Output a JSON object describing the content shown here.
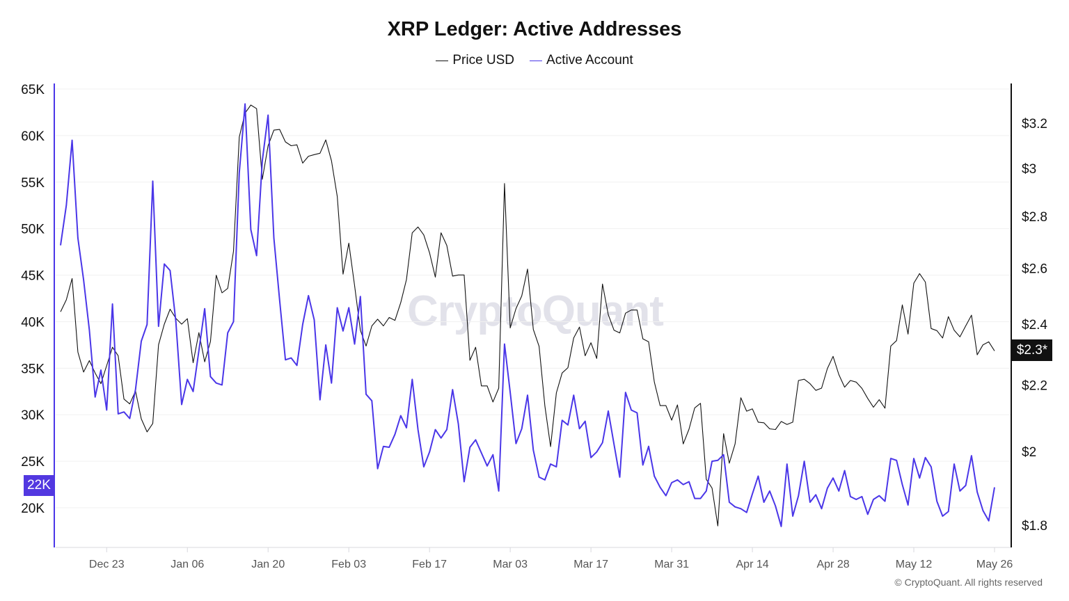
{
  "chart_data": {
    "type": "line",
    "title": "XRP Ledger: Active Addresses",
    "legend_position": "top-center",
    "grid": true,
    "colors": {
      "price": "#111111",
      "active": "#4a36e8",
      "active_badge": "#5238e0",
      "price_badge": "#111111"
    },
    "x": [
      "Dec 15",
      "Dec 16",
      "Dec 17",
      "Dec 18",
      "Dec 19",
      "Dec 20",
      "Dec 21",
      "Dec 22",
      "Dec 23",
      "Dec 24",
      "Dec 25",
      "Dec 26",
      "Dec 27",
      "Dec 28",
      "Dec 29",
      "Dec 30",
      "Dec 31",
      "Jan 01",
      "Jan 02",
      "Jan 03",
      "Jan 04",
      "Jan 05",
      "Jan 06",
      "Jan 07",
      "Jan 08",
      "Jan 09",
      "Jan 10",
      "Jan 11",
      "Jan 12",
      "Jan 13",
      "Jan 14",
      "Jan 15",
      "Jan 16",
      "Jan 17",
      "Jan 18",
      "Jan 19",
      "Jan 20",
      "Jan 21",
      "Jan 22",
      "Jan 23",
      "Jan 24",
      "Jan 25",
      "Jan 26",
      "Jan 27",
      "Jan 28",
      "Jan 29",
      "Jan 30",
      "Jan 31",
      "Feb 01",
      "Feb 02",
      "Feb 03",
      "Feb 04",
      "Feb 05",
      "Feb 06",
      "Feb 07",
      "Feb 08",
      "Feb 09",
      "Feb 10",
      "Feb 11",
      "Feb 12",
      "Feb 13",
      "Feb 14",
      "Feb 15",
      "Feb 16",
      "Feb 17",
      "Feb 18",
      "Feb 19",
      "Feb 20",
      "Feb 21",
      "Feb 22",
      "Feb 23",
      "Feb 24",
      "Feb 25",
      "Feb 26",
      "Feb 27",
      "Feb 28",
      "Mar 01",
      "Mar 02",
      "Mar 03",
      "Mar 04",
      "Mar 05",
      "Mar 06",
      "Mar 07",
      "Mar 08",
      "Mar 09",
      "Mar 10",
      "Mar 11",
      "Mar 12",
      "Mar 13",
      "Mar 14",
      "Mar 15",
      "Mar 16",
      "Mar 17",
      "Mar 18",
      "Mar 19",
      "Mar 20",
      "Mar 21",
      "Mar 22",
      "Mar 23",
      "Mar 24",
      "Mar 25",
      "Mar 26",
      "Mar 27",
      "Mar 28",
      "Mar 29",
      "Mar 30",
      "Mar 31",
      "Apr 01",
      "Apr 02",
      "Apr 03",
      "Apr 04",
      "Apr 05",
      "Apr 06",
      "Apr 07",
      "Apr 08",
      "Apr 09",
      "Apr 10",
      "Apr 11",
      "Apr 12",
      "Apr 13",
      "Apr 14",
      "Apr 15",
      "Apr 16",
      "Apr 17",
      "Apr 18",
      "Apr 19",
      "Apr 20",
      "Apr 21",
      "Apr 22",
      "Apr 23",
      "Apr 24",
      "Apr 25",
      "Apr 26",
      "Apr 27",
      "Apr 28",
      "Apr 29",
      "Apr 30",
      "May 01",
      "May 02",
      "May 03",
      "May 04",
      "May 05",
      "May 06",
      "May 07",
      "May 08",
      "May 09",
      "May 10",
      "May 11",
      "May 12",
      "May 13",
      "May 14",
      "May 15",
      "May 16",
      "May 17",
      "May 18",
      "May 19",
      "May 20",
      "May 21",
      "May 22",
      "May 23",
      "May 24",
      "May 25",
      "May 26"
    ],
    "x_ticks": [
      "Dec 23",
      "Jan 06",
      "Jan 20",
      "Feb 03",
      "Feb 17",
      "Mar 03",
      "Mar 17",
      "Mar 31",
      "Apr 14",
      "Apr 28",
      "May 12",
      "May 26"
    ],
    "series": [
      {
        "name": "Price USD",
        "axis": "right",
        "unit": "USD",
        "values": [
          2.443,
          2.485,
          2.562,
          2.306,
          2.241,
          2.278,
          2.238,
          2.204,
          2.262,
          2.322,
          2.294,
          2.156,
          2.141,
          2.181,
          2.096,
          2.057,
          2.082,
          2.33,
          2.4,
          2.452,
          2.42,
          2.4,
          2.419,
          2.271,
          2.371,
          2.274,
          2.341,
          2.574,
          2.51,
          2.526,
          2.664,
          3.137,
          3.246,
          3.284,
          3.267,
          2.953,
          3.098,
          3.168,
          3.171,
          3.115,
          3.098,
          3.102,
          3.022,
          3.052,
          3.059,
          3.065,
          3.124,
          3.032,
          2.881,
          2.578,
          2.695,
          2.536,
          2.379,
          2.326,
          2.394,
          2.417,
          2.394,
          2.423,
          2.413,
          2.475,
          2.558,
          2.735,
          2.758,
          2.727,
          2.658,
          2.567,
          2.735,
          2.686,
          2.571,
          2.575,
          2.575,
          2.279,
          2.322,
          2.197,
          2.197,
          2.147,
          2.19,
          2.935,
          2.387,
          2.454,
          2.499,
          2.597,
          2.382,
          2.325,
          2.135,
          2.014,
          2.175,
          2.238,
          2.255,
          2.353,
          2.39,
          2.294,
          2.337,
          2.285,
          2.542,
          2.433,
          2.379,
          2.37,
          2.438,
          2.449,
          2.449,
          2.35,
          2.34,
          2.209,
          2.136,
          2.136,
          2.092,
          2.138,
          2.022,
          2.065,
          2.129,
          2.143,
          1.922,
          1.898,
          1.798,
          2.052,
          1.967,
          2.022,
          2.16,
          2.119,
          2.126,
          2.086,
          2.084,
          2.066,
          2.064,
          2.088,
          2.079,
          2.086,
          2.214,
          2.218,
          2.204,
          2.183,
          2.19,
          2.252,
          2.292,
          2.233,
          2.193,
          2.214,
          2.209,
          2.189,
          2.158,
          2.131,
          2.154,
          2.128,
          2.326,
          2.344,
          2.467,
          2.366,
          2.545,
          2.58,
          2.549,
          2.385,
          2.378,
          2.353,
          2.426,
          2.379,
          2.357,
          2.394,
          2.431,
          2.297,
          2.33,
          2.34,
          2.31
        ]
      },
      {
        "name": "Active Account",
        "axis": "left",
        "unit": "thousands",
        "values": [
          48.2,
          52.5,
          59.5,
          49.0,
          44.5,
          39.1,
          31.9,
          34.8,
          30.5,
          41.9,
          30.1,
          30.3,
          29.6,
          32.7,
          37.9,
          39.7,
          55.1,
          39.5,
          46.2,
          45.5,
          40.0,
          31.1,
          33.8,
          32.5,
          36.9,
          41.4,
          34.1,
          33.4,
          33.2,
          38.8,
          40.0,
          56.0,
          63.4,
          49.9,
          47.1,
          57.3,
          62.2,
          49.0,
          42.3,
          35.9,
          36.1,
          35.3,
          39.7,
          42.8,
          40.2,
          31.6,
          37.5,
          33.4,
          41.5,
          39.0,
          41.5,
          37.6,
          42.7,
          32.2,
          31.5,
          24.2,
          26.6,
          26.5,
          27.9,
          29.9,
          28.6,
          33.8,
          28.4,
          24.4,
          26.0,
          28.4,
          27.5,
          28.4,
          32.7,
          29.0,
          22.8,
          26.5,
          27.3,
          25.9,
          24.5,
          25.7,
          21.8,
          37.6,
          32.4,
          26.9,
          28.5,
          32.1,
          26.2,
          23.3,
          23.0,
          24.7,
          24.4,
          29.4,
          28.9,
          32.1,
          28.5,
          29.3,
          25.4,
          26.0,
          27.0,
          30.4,
          26.8,
          23.3,
          32.4,
          30.5,
          30.2,
          24.6,
          26.6,
          23.4,
          22.2,
          21.3,
          22.7,
          23.0,
          22.5,
          22.8,
          21.0,
          21.0,
          21.8,
          25.0,
          25.1,
          25.7,
          20.6,
          20.1,
          19.9,
          19.5,
          21.5,
          23.4,
          20.6,
          21.8,
          20.2,
          18.0,
          24.7,
          19.1,
          21.3,
          25.0,
          20.6,
          21.4,
          19.9,
          22.1,
          23.2,
          21.8,
          24.0,
          21.2,
          20.9,
          21.2,
          19.3,
          20.9,
          21.3,
          20.7,
          25.3,
          25.1,
          22.5,
          20.3,
          25.3,
          23.2,
          25.4,
          24.4,
          20.7,
          19.1,
          19.6,
          24.7,
          21.8,
          22.4,
          25.6,
          21.7,
          19.7,
          18.6,
          22.2
        ]
      }
    ],
    "y_left": {
      "scale": "linear",
      "ticks": [
        65,
        60,
        55,
        50,
        45,
        40,
        35,
        30,
        25,
        20
      ],
      "tick_labels": [
        "65K",
        "60K",
        "55K",
        "50K",
        "45K",
        "40K",
        "35K",
        "30K",
        "25K",
        "20K"
      ]
    },
    "y_right": {
      "scale": "log",
      "ticks": [
        3.2,
        3,
        2.8,
        2.6,
        2.4,
        2.2,
        2,
        1.8
      ],
      "tick_labels": [
        "$3.2",
        "$3",
        "$2.8",
        "$2.6",
        "$2.4",
        "$2.2",
        "$2",
        "$1.8"
      ]
    },
    "current_left_label": "22K",
    "current_right_label": "$2.3*"
  },
  "legend": {
    "price": "Price USD",
    "active": "Active Account"
  },
  "watermark": "CryptoQuant",
  "footer": "© CryptoQuant. All rights reserved"
}
